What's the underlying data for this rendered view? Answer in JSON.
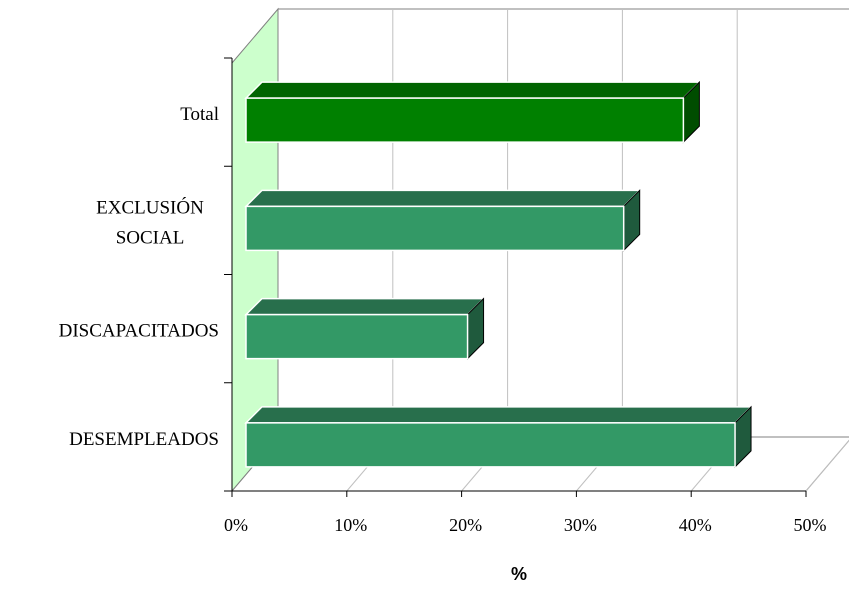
{
  "chart_data": {
    "type": "bar",
    "orientation": "horizontal",
    "three_d": true,
    "categories": [
      "DESEMPLEADOS",
      "DISCAPACITADOS",
      "EXCLUSIÓN SOCIAL",
      "Total"
    ],
    "category_label_lines": [
      [
        "DESEMPLEADOS"
      ],
      [
        "DISCAPACITADOS"
      ],
      [
        "EXCLUSIÓN",
        "SOCIAL"
      ],
      [
        "Total"
      ]
    ],
    "values": [
      42.6,
      19.3,
      32.9,
      38.1
    ],
    "x_ticks": [
      "0%",
      "10%",
      "20%",
      "30%",
      "40%",
      "50%"
    ],
    "xlim": [
      0,
      50
    ],
    "xlabel": "%",
    "ylabel": "",
    "title": "",
    "grid": true,
    "legend": "none",
    "colors": {
      "bar_front": "#339966",
      "bar_top": "#286f4c",
      "bar_side": "#1f5a3d",
      "highlight_front": "#008000",
      "highlight_top": "#006400",
      "highlight_side": "#004d00",
      "wall": "#ccffcc",
      "grid": "#c0c0c0",
      "axis": "#000000"
    },
    "highlight_category": "Total"
  }
}
